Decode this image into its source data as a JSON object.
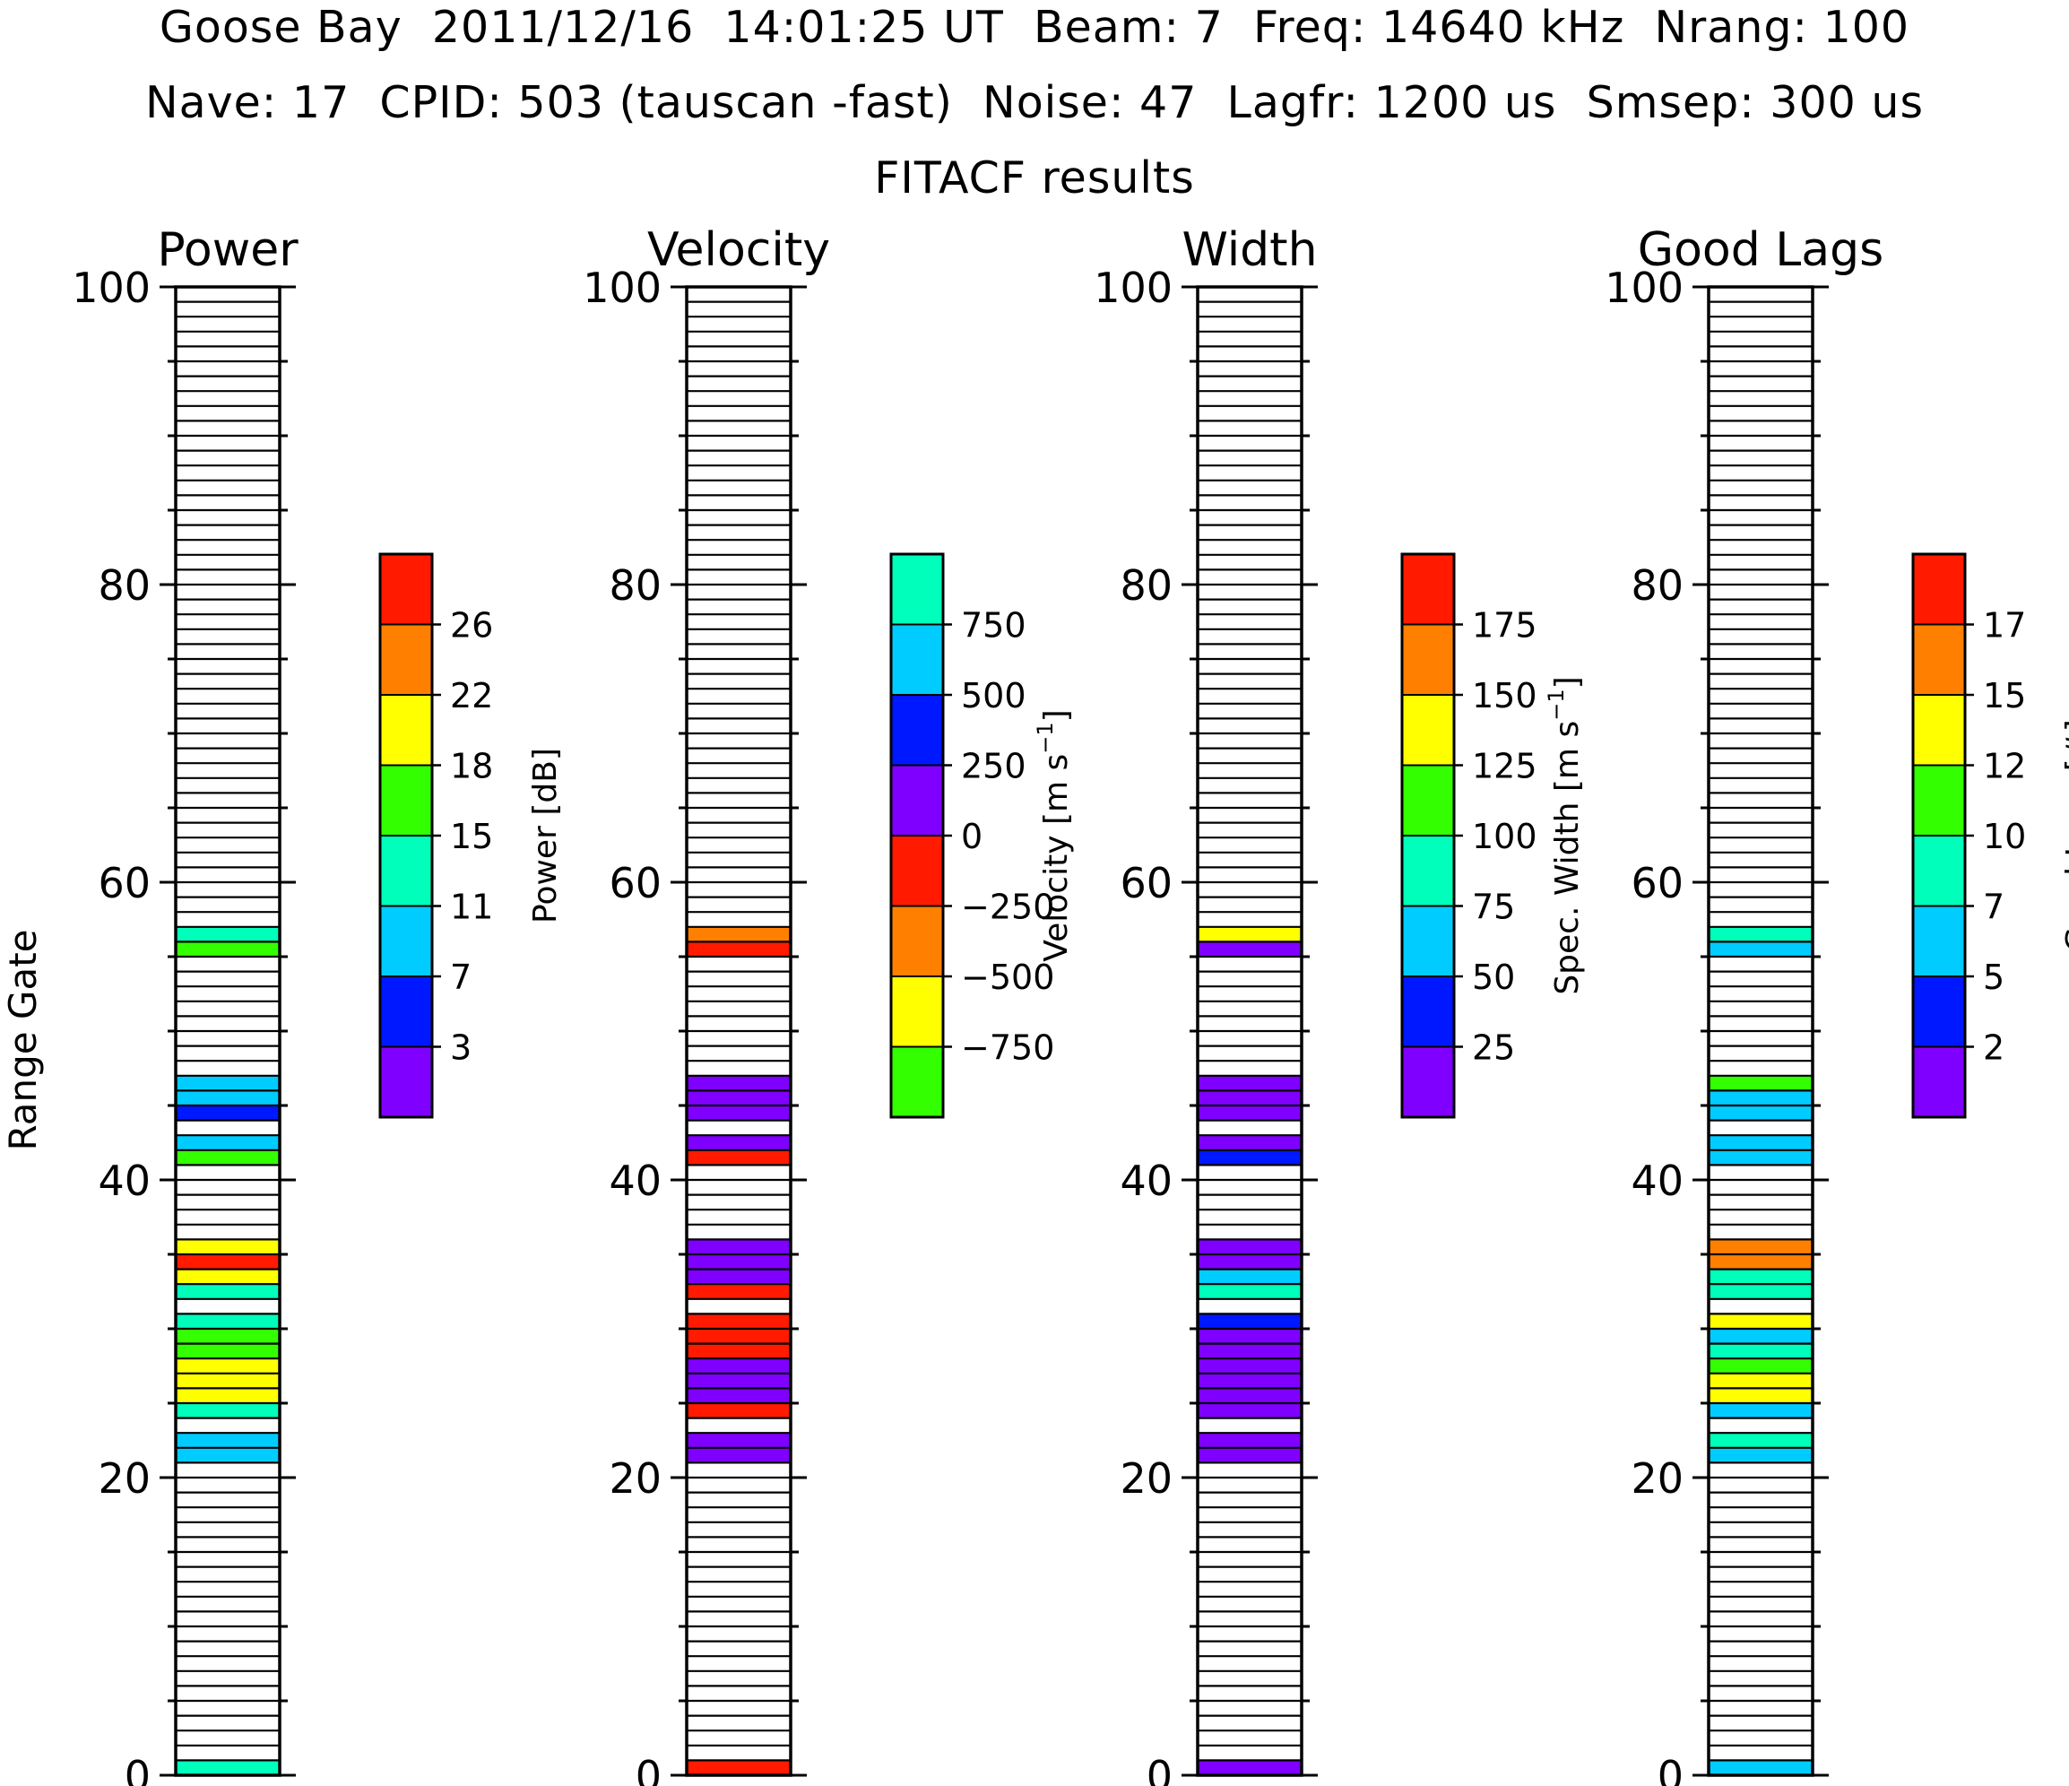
{
  "header": {
    "line1": "Goose Bay  2011/12/16  14:01:25 UT  Beam: 7  Freq: 14640 kHz  Nrang: 100",
    "line2": "Nave: 17  CPID: 503 (tauscan -fast)  Noise: 47  Lagfr: 1200 us  Smsep: 300 us",
    "line3": "FITACF results"
  },
  "chart_data": {
    "type": "heatmap",
    "ylabel": "Range Gate",
    "ylim": [
      0,
      100
    ],
    "y_ticks": [
      "0",
      "20",
      "40",
      "60",
      "80",
      "100"
    ],
    "gates_total": 100,
    "panels": [
      {
        "title": "Power",
        "colorbar": {
          "label": "Power [dB]",
          "colors": [
            "#8000ff",
            "#0018ff",
            "#00ccff",
            "#00ffbb",
            "#33ff00",
            "#ffff00",
            "#ff8000",
            "#ff1a00"
          ],
          "ticks": [
            "3",
            "7",
            "11",
            "15",
            "18",
            "22",
            "26"
          ]
        },
        "cells": [
          [
            0,
            3
          ],
          [
            21,
            2
          ],
          [
            22,
            2
          ],
          [
            24,
            3
          ],
          [
            25,
            5
          ],
          [
            26,
            5
          ],
          [
            27,
            5
          ],
          [
            28,
            4
          ],
          [
            29,
            4
          ],
          [
            30,
            3
          ],
          [
            32,
            3
          ],
          [
            33,
            5
          ],
          [
            34,
            7
          ],
          [
            35,
            5
          ],
          [
            41,
            4
          ],
          [
            42,
            2
          ],
          [
            44,
            1
          ],
          [
            45,
            2
          ],
          [
            46,
            2
          ],
          [
            55,
            4
          ],
          [
            56,
            3
          ]
        ]
      },
      {
        "title": "Velocity",
        "colorbar": {
          "label": "Velocity [m s^-1]",
          "colors": [
            "#33ff00",
            "#ffff00",
            "#ff8000",
            "#ff1a00",
            "#8000ff",
            "#0018ff",
            "#00ccff",
            "#00ffbb"
          ],
          "ticks": [
            "-750",
            "-500",
            "-250",
            "0",
            "250",
            "500",
            "750"
          ]
        },
        "cells": [
          [
            0,
            3
          ],
          [
            21,
            4
          ],
          [
            22,
            4
          ],
          [
            24,
            3
          ],
          [
            25,
            4
          ],
          [
            26,
            4
          ],
          [
            27,
            4
          ],
          [
            28,
            3
          ],
          [
            29,
            3
          ],
          [
            30,
            3
          ],
          [
            32,
            3
          ],
          [
            33,
            4
          ],
          [
            34,
            4
          ],
          [
            35,
            4
          ],
          [
            41,
            3
          ],
          [
            42,
            4
          ],
          [
            44,
            4
          ],
          [
            45,
            4
          ],
          [
            46,
            4
          ],
          [
            55,
            3
          ],
          [
            56,
            2
          ]
        ]
      },
      {
        "title": "Width",
        "colorbar": {
          "label": "Spec. Width [m s^-1]",
          "colors": [
            "#8000ff",
            "#0018ff",
            "#00ccff",
            "#00ffbb",
            "#33ff00",
            "#ffff00",
            "#ff8000",
            "#ff1a00"
          ],
          "ticks": [
            "25",
            "50",
            "75",
            "100",
            "125",
            "150",
            "175"
          ]
        },
        "cells": [
          [
            0,
            0
          ],
          [
            21,
            0
          ],
          [
            22,
            0
          ],
          [
            24,
            0
          ],
          [
            25,
            0
          ],
          [
            26,
            0
          ],
          [
            27,
            0
          ],
          [
            28,
            0
          ],
          [
            29,
            0
          ],
          [
            30,
            1
          ],
          [
            32,
            3
          ],
          [
            33,
            2
          ],
          [
            34,
            0
          ],
          [
            35,
            0
          ],
          [
            41,
            1
          ],
          [
            42,
            0
          ],
          [
            44,
            0
          ],
          [
            45,
            0
          ],
          [
            46,
            0
          ],
          [
            55,
            0
          ],
          [
            56,
            5
          ]
        ]
      },
      {
        "title": "Good Lags",
        "colorbar": {
          "label": "Good Lags [#]",
          "colors": [
            "#8000ff",
            "#0018ff",
            "#00ccff",
            "#00ffbb",
            "#33ff00",
            "#ffff00",
            "#ff8000",
            "#ff1a00"
          ],
          "ticks": [
            "2",
            "5",
            "7",
            "10",
            "12",
            "15",
            "17"
          ]
        },
        "cells": [
          [
            0,
            2
          ],
          [
            21,
            2
          ],
          [
            22,
            3
          ],
          [
            24,
            2
          ],
          [
            25,
            5
          ],
          [
            26,
            5
          ],
          [
            27,
            4
          ],
          [
            28,
            3
          ],
          [
            29,
            2
          ],
          [
            30,
            5
          ],
          [
            32,
            3
          ],
          [
            33,
            3
          ],
          [
            34,
            6
          ],
          [
            35,
            6
          ],
          [
            41,
            2
          ],
          [
            42,
            2
          ],
          [
            44,
            2
          ],
          [
            45,
            2
          ],
          [
            46,
            4
          ],
          [
            55,
            2
          ],
          [
            56,
            3
          ]
        ]
      }
    ]
  }
}
